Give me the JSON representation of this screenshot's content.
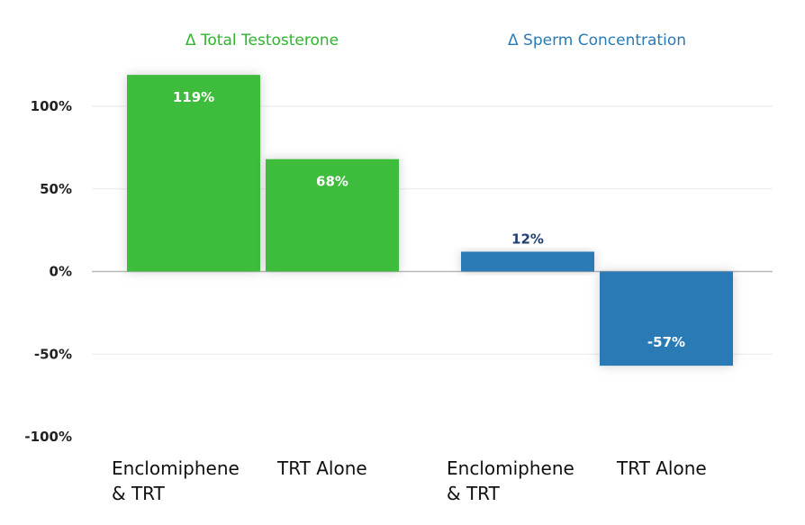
{
  "chart_data": {
    "type": "bar",
    "ylim": [
      -100,
      100
    ],
    "yticks": [
      100,
      50,
      0,
      -50,
      -100
    ],
    "ytick_labels": [
      "100%",
      "50%",
      "0%",
      "-50%",
      "-100%"
    ],
    "grid": true,
    "groups": [
      {
        "title": "Δ Total Testosterone",
        "color": "#3dbd3a",
        "title_color": "#2fb52f",
        "label_color": "#ffffff",
        "bars": [
          {
            "category": [
              "Enclomiphene",
              "& TRT"
            ],
            "value": 119,
            "label": "119%"
          },
          {
            "category": [
              "TRT Alone"
            ],
            "value": 68,
            "label": "68%"
          }
        ]
      },
      {
        "title": "Δ Sperm Concentration",
        "color": "#2b7ab5",
        "title_color": "#2b7ab5",
        "label_color_positive": "#1f3f73",
        "label_color": "#ffffff",
        "bars": [
          {
            "category": [
              "Enclomiphene",
              "& TRT"
            ],
            "value": 12,
            "label": "12%"
          },
          {
            "category": [
              "TRT Alone"
            ],
            "value": -57,
            "label": "-57%"
          }
        ]
      }
    ]
  }
}
